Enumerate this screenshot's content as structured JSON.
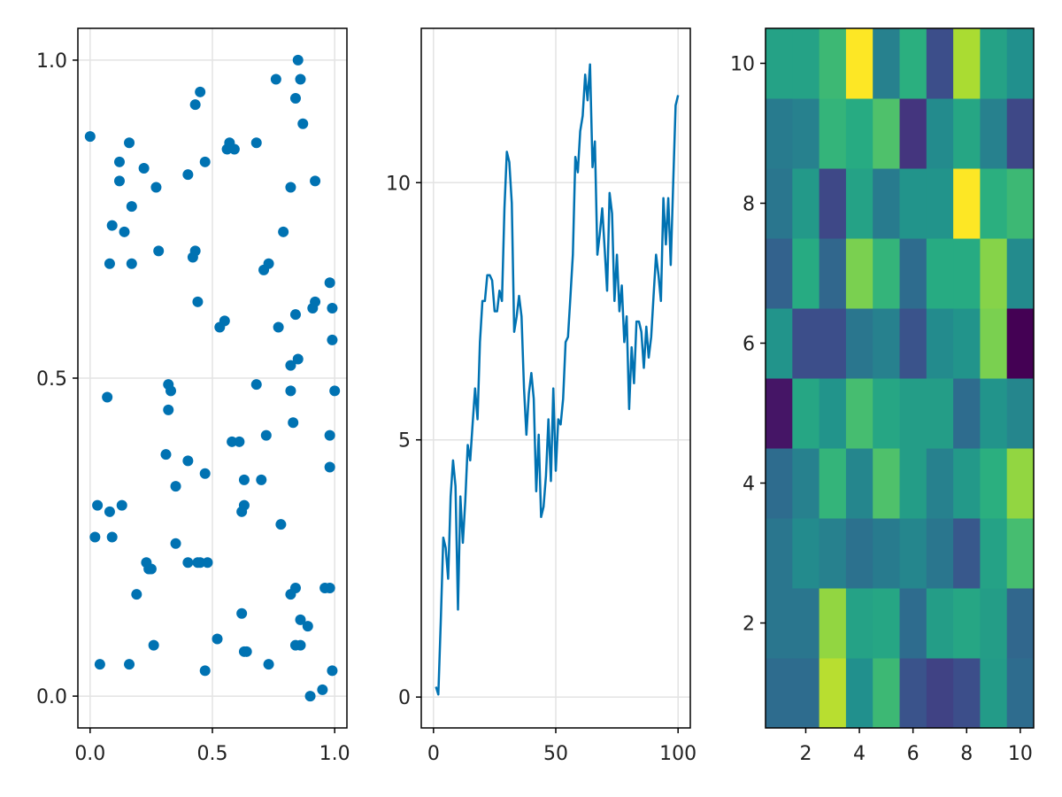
{
  "chart_data": [
    {
      "type": "scatter",
      "xlim": [
        -0.05,
        1.05
      ],
      "ylim": [
        -0.05,
        1.05
      ],
      "xticks": [
        0.0,
        0.5,
        1.0
      ],
      "xtick_labels": [
        "0.0",
        "0.5",
        "1.0"
      ],
      "yticks": [
        0.0,
        0.5,
        1.0
      ],
      "ytick_labels": [
        "0.0",
        "0.5",
        "1.0"
      ],
      "grid": true,
      "color": "#0072b2",
      "x": [
        0.0,
        0.02,
        0.03,
        0.04,
        0.07,
        0.08,
        0.08,
        0.09,
        0.09,
        0.12,
        0.13,
        0.12,
        0.14,
        0.16,
        0.16,
        0.17,
        0.17,
        0.19,
        0.22,
        0.23,
        0.24,
        0.25,
        0.26,
        0.27,
        0.28,
        0.31,
        0.32,
        0.32,
        0.33,
        0.35,
        0.35,
        0.4,
        0.4,
        0.4,
        0.42,
        0.43,
        0.43,
        0.44,
        0.45,
        0.44,
        0.45,
        0.47,
        0.47,
        0.47,
        0.48,
        0.52,
        0.53,
        0.55,
        0.56,
        0.57,
        0.58,
        0.59,
        0.61,
        0.62,
        0.63,
        0.63,
        0.63,
        0.62,
        0.64,
        0.68,
        0.68,
        0.7,
        0.71,
        0.72,
        0.73,
        0.73,
        0.76,
        0.77,
        0.78,
        0.79,
        0.82,
        0.82,
        0.82,
        0.82,
        0.83,
        0.84,
        0.84,
        0.84,
        0.84,
        0.85,
        0.85,
        0.86,
        0.86,
        0.86,
        0.87,
        0.89,
        0.9,
        0.91,
        0.92,
        0.92,
        0.95,
        0.96,
        0.98,
        0.98,
        0.98,
        0.98,
        0.99,
        0.99,
        0.99,
        1.0
      ],
      "y": [
        0.88,
        0.25,
        0.3,
        0.05,
        0.47,
        0.29,
        0.68,
        0.74,
        0.25,
        0.84,
        0.3,
        0.81,
        0.73,
        0.05,
        0.87,
        0.68,
        0.77,
        0.16,
        0.83,
        0.21,
        0.2,
        0.2,
        0.08,
        0.8,
        0.7,
        0.38,
        0.45,
        0.49,
        0.48,
        0.33,
        0.24,
        0.82,
        0.37,
        0.21,
        0.69,
        0.93,
        0.7,
        0.62,
        0.95,
        0.21,
        0.21,
        0.84,
        0.35,
        0.04,
        0.21,
        0.09,
        0.58,
        0.59,
        0.86,
        0.87,
        0.4,
        0.86,
        0.4,
        0.13,
        0.07,
        0.34,
        0.3,
        0.29,
        0.07,
        0.87,
        0.49,
        0.34,
        0.67,
        0.41,
        0.68,
        0.05,
        0.97,
        0.58,
        0.27,
        0.73,
        0.16,
        0.52,
        0.48,
        0.8,
        0.43,
        0.6,
        0.94,
        0.17,
        0.08,
        1.0,
        0.53,
        0.97,
        0.12,
        0.08,
        0.9,
        0.11,
        0.0,
        0.61,
        0.62,
        0.81,
        0.01,
        0.17,
        0.41,
        0.17,
        0.36,
        0.65,
        0.04,
        0.56,
        0.61,
        0.48
      ]
    },
    {
      "type": "line",
      "xlim": [
        -5,
        105
      ],
      "ylim": [
        -0.6,
        13.0
      ],
      "xticks": [
        0,
        50,
        100
      ],
      "xtick_labels": [
        "0",
        "50",
        "100"
      ],
      "yticks": [
        0,
        5,
        10
      ],
      "ytick_labels": [
        "0",
        "5",
        "10"
      ],
      "grid": true,
      "color": "#0072b2",
      "x": [
        1,
        2,
        3,
        4,
        5,
        6,
        7,
        8,
        9,
        10,
        11,
        12,
        13,
        14,
        15,
        16,
        17,
        18,
        19,
        20,
        21,
        22,
        23,
        24,
        25,
        26,
        27,
        28,
        29,
        30,
        31,
        32,
        33,
        34,
        35,
        36,
        37,
        38,
        39,
        40,
        41,
        42,
        43,
        44,
        45,
        46,
        47,
        48,
        49,
        50,
        51,
        52,
        53,
        54,
        55,
        56,
        57,
        58,
        59,
        60,
        61,
        62,
        63,
        64,
        65,
        66,
        67,
        68,
        69,
        70,
        71,
        72,
        73,
        74,
        75,
        76,
        77,
        78,
        79,
        80,
        81,
        82,
        83,
        84,
        85,
        86,
        87,
        88,
        89,
        90,
        91,
        92,
        93,
        94,
        95,
        96,
        97,
        98,
        99,
        100
      ],
      "y": [
        0.2,
        0.05,
        1.5,
        3.1,
        2.9,
        2.3,
        3.9,
        4.6,
        4.1,
        1.7,
        3.9,
        3.0,
        3.8,
        4.9,
        4.6,
        5.3,
        6.0,
        5.4,
        6.9,
        7.7,
        7.7,
        8.2,
        8.2,
        8.1,
        7.5,
        7.5,
        7.9,
        7.7,
        9.5,
        10.6,
        10.4,
        9.6,
        7.1,
        7.4,
        7.8,
        7.4,
        6.0,
        5.1,
        5.9,
        6.3,
        5.8,
        4.0,
        5.1,
        3.5,
        3.7,
        4.3,
        5.4,
        4.2,
        6.0,
        4.4,
        5.4,
        5.3,
        5.8,
        6.9,
        7.0,
        7.8,
        8.6,
        10.5,
        10.2,
        11.0,
        11.3,
        12.1,
        11.6,
        12.3,
        10.3,
        10.8,
        8.6,
        9.0,
        9.5,
        8.7,
        7.9,
        9.8,
        9.4,
        7.7,
        8.6,
        7.5,
        8.0,
        6.9,
        7.4,
        5.6,
        6.8,
        6.1,
        7.3,
        7.3,
        7.1,
        6.4,
        7.2,
        6.6,
        7.0,
        7.8,
        8.6,
        8.2,
        7.7,
        9.7,
        8.8,
        9.7,
        8.4,
        10.0,
        11.5,
        11.7
      ]
    },
    {
      "type": "heatmap",
      "xlim": [
        0.5,
        10.5
      ],
      "ylim": [
        0.5,
        10.5
      ],
      "xticks": [
        2,
        4,
        6,
        8,
        10
      ],
      "xtick_labels": [
        "2",
        "4",
        "6",
        "8",
        "10"
      ],
      "yticks": [
        2,
        4,
        6,
        8,
        10
      ],
      "ytick_labels": [
        "2",
        "4",
        "6",
        "8",
        "10"
      ],
      "grid": false,
      "colormap": "viridis",
      "rows_bottom_to_top": [
        [
          0.36,
          0.36,
          0.9,
          0.5,
          0.68,
          0.26,
          0.2,
          0.24,
          0.55,
          0.36
        ],
        [
          0.4,
          0.4,
          0.84,
          0.58,
          0.6,
          0.36,
          0.56,
          0.6,
          0.56,
          0.34
        ],
        [
          0.4,
          0.48,
          0.44,
          0.38,
          0.42,
          0.46,
          0.4,
          0.28,
          0.58,
          0.7
        ],
        [
          0.36,
          0.44,
          0.66,
          0.46,
          0.72,
          0.56,
          0.44,
          0.54,
          0.64,
          0.84
        ],
        [
          0.06,
          0.6,
          0.52,
          0.7,
          0.6,
          0.56,
          0.56,
          0.36,
          0.52,
          0.46
        ],
        [
          0.52,
          0.24,
          0.24,
          0.4,
          0.44,
          0.26,
          0.48,
          0.52,
          0.8,
          0.0
        ],
        [
          0.32,
          0.62,
          0.34,
          0.8,
          0.66,
          0.36,
          0.62,
          0.62,
          0.82,
          0.48
        ],
        [
          0.4,
          0.54,
          0.22,
          0.58,
          0.42,
          0.52,
          0.52,
          1.0,
          0.64,
          0.68
        ],
        [
          0.42,
          0.44,
          0.66,
          0.62,
          0.72,
          0.16,
          0.48,
          0.6,
          0.44,
          0.22
        ],
        [
          0.58,
          0.58,
          0.68,
          1.0,
          0.44,
          0.64,
          0.24,
          0.88,
          0.58,
          0.5
        ]
      ]
    }
  ]
}
